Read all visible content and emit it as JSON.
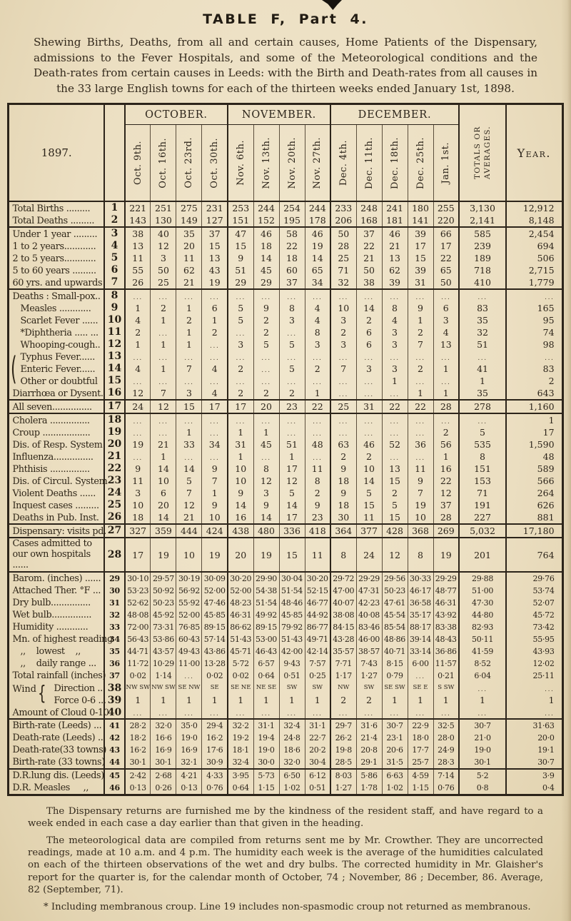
{
  "page": {
    "title": "TABLE F, Part 4.",
    "subtitle": "Shewing Births, Deaths, from all and certain causes, Home Patients of the Dispensary, admissions to the Fever Hospitals, and some of the Meteorological conditions and the Death-rates from certain causes in Leeds: with the Birth and Death-rates from all causes in the 33 large English towns for each of the thirteen weeks ended January 1st, 1898."
  },
  "glyphs": {
    "brace3": "(",
    "brace2": "{"
  },
  "table": {
    "year_label": "1897.",
    "month_groups": [
      {
        "label": "OCTOBER.",
        "cols": 4
      },
      {
        "label": "NOVEMBER.",
        "cols": 4
      },
      {
        "label": "DECEMBER.",
        "cols": 5
      }
    ],
    "week_headers": [
      "Oct. 9th.",
      "Oct. 16th.",
      "Oct. 23rd.",
      "Oct. 30th.",
      "Nov. 6th.",
      "Nov. 13th.",
      "Nov. 20th.",
      "Nov. 27th.",
      "Dec. 4th.",
      "Dec. 11th.",
      "Dec. 18th.",
      "Dec. 25th.",
      "Jan. 1st."
    ],
    "totals_header": "TOTALS OR AVERAGES.",
    "year_header": "Year.",
    "rows": [
      {
        "label": "Total Births .........",
        "num": "1",
        "cells": [
          "221",
          "251",
          "275",
          "231",
          "253",
          "244",
          "254",
          "244",
          "233",
          "248",
          "241",
          "180",
          "255"
        ],
        "tot": "3,130",
        "yr": "12,912",
        "gs": true
      },
      {
        "label": "Total Deaths .........",
        "num": "2",
        "cells": [
          "143",
          "130",
          "149",
          "127",
          "151",
          "152",
          "195",
          "178",
          "206",
          "168",
          "181",
          "141",
          "220"
        ],
        "tot": "2,141",
        "yr": "8,148"
      },
      {
        "label": "Under 1 year .........",
        "num": "3",
        "cells": [
          "38",
          "40",
          "35",
          "37",
          "47",
          "46",
          "58",
          "46",
          "50",
          "37",
          "46",
          "39",
          "66"
        ],
        "tot": "585",
        "yr": "2,454",
        "gs": true
      },
      {
        "label": "1 to 2 years............",
        "num": "4",
        "cells": [
          "13",
          "12",
          "20",
          "15",
          "15",
          "18",
          "22",
          "19",
          "28",
          "22",
          "21",
          "17",
          "17"
        ],
        "tot": "239",
        "yr": "694"
      },
      {
        "label": "2 to 5 years............",
        "num": "5",
        "cells": [
          "11",
          "3",
          "11",
          "13",
          "9",
          "14",
          "18",
          "14",
          "25",
          "21",
          "13",
          "15",
          "22"
        ],
        "tot": "189",
        "yr": "506"
      },
      {
        "label": "5 to 60 years .........",
        "num": "6",
        "cells": [
          "55",
          "50",
          "62",
          "43",
          "51",
          "45",
          "60",
          "65",
          "71",
          "50",
          "62",
          "39",
          "65"
        ],
        "tot": "718",
        "yr": "2,715"
      },
      {
        "label": "60 yrs. and upwards",
        "num": "7",
        "cells": [
          "26",
          "25",
          "21",
          "19",
          "29",
          "29",
          "37",
          "34",
          "32",
          "38",
          "39",
          "31",
          "50"
        ],
        "tot": "410",
        "yr": "1,779"
      },
      {
        "label": "Deaths : Small-pox..",
        "num": "8",
        "cells": [
          "...",
          "...",
          "...",
          "...",
          "...",
          "...",
          "...",
          "...",
          "...",
          "...",
          "...",
          "...",
          "..."
        ],
        "tot": "...",
        "yr": "...",
        "gs": true
      },
      {
        "label": "Measles ............",
        "num": "9",
        "indent": true,
        "cells": [
          "1",
          "2",
          "1",
          "6",
          "5",
          "9",
          "8",
          "4",
          "10",
          "14",
          "8",
          "9",
          "6"
        ],
        "tot": "83",
        "yr": "165"
      },
      {
        "label": "Scarlet Fever ......",
        "num": "10",
        "indent": true,
        "cells": [
          "4",
          "1",
          "2",
          "1",
          "5",
          "2",
          "3",
          "4",
          "3",
          "2",
          "4",
          "1",
          "3"
        ],
        "tot": "35",
        "yr": "95"
      },
      {
        "label": "*Diphtheria ..... ...",
        "num": "11",
        "indent": true,
        "cells": [
          "2",
          "...",
          "1",
          "2",
          "...",
          "2",
          "...",
          "8",
          "2",
          "6",
          "3",
          "2",
          "4"
        ],
        "tot": "32",
        "yr": "74"
      },
      {
        "label": "Whooping-cough..",
        "num": "12",
        "indent": true,
        "cells": [
          "1",
          "1",
          "1",
          "...",
          "3",
          "5",
          "5",
          "3",
          "3",
          "6",
          "3",
          "7",
          "13"
        ],
        "tot": "51",
        "yr": "98"
      },
      {
        "label": "Typhus Fever......",
        "num": "13",
        "indent": true,
        "brace3": true,
        "cells": [
          "...",
          "...",
          "...",
          "...",
          "...",
          "...",
          "...",
          "...",
          "...",
          "...",
          "...",
          "...",
          "..."
        ],
        "tot": "...",
        "yr": "..."
      },
      {
        "label": "Enteric Fever......",
        "num": "14",
        "indent": true,
        "cells": [
          "4",
          "1",
          "7",
          "4",
          "2",
          "...",
          "5",
          "2",
          "7",
          "3",
          "3",
          "2",
          "1"
        ],
        "tot": "41",
        "yr": "83"
      },
      {
        "label": "Other or doubtful",
        "num": "15",
        "indent": true,
        "cells": [
          "...",
          "...",
          "...",
          "...",
          "...",
          "...",
          "...",
          "...",
          "...",
          "...",
          "1",
          "...",
          "..."
        ],
        "tot": "1",
        "yr": "2"
      },
      {
        "label": "Diarrhœa or Dysent.",
        "num": "16",
        "cells": [
          "12",
          "7",
          "3",
          "4",
          "2",
          "2",
          "2",
          "1",
          "...",
          "...",
          "...",
          "1",
          "1"
        ],
        "tot": "35",
        "yr": "643"
      },
      {
        "label": "All seven...............",
        "num": "17",
        "cells": [
          "24",
          "12",
          "15",
          "17",
          "17",
          "20",
          "23",
          "22",
          "25",
          "31",
          "22",
          "22",
          "28"
        ],
        "tot": "278",
        "yr": "1,160",
        "gs": true
      },
      {
        "label": "Cholera ...............",
        "num": "18",
        "cells": [
          "...",
          "...",
          "...",
          "...",
          "...",
          "...",
          "...",
          "...",
          "...",
          "...",
          "...",
          "...",
          "..."
        ],
        "tot": "...",
        "yr": "1",
        "gs": true
      },
      {
        "label": "Croup ..................",
        "num": "19",
        "cells": [
          "...",
          "...",
          "1",
          "...",
          "1",
          "1",
          "...",
          "...",
          "...",
          "...",
          "...",
          "...",
          "2"
        ],
        "tot": "5",
        "yr": "17"
      },
      {
        "label": "Dis. of Resp. System",
        "num": "20",
        "cells": [
          "19",
          "21",
          "33",
          "34",
          "31",
          "45",
          "51",
          "48",
          "63",
          "46",
          "52",
          "36",
          "56"
        ],
        "tot": "535",
        "yr": "1,590"
      },
      {
        "label": "Influenza...............",
        "num": "21",
        "cells": [
          "...",
          "1",
          "...",
          "...",
          "1",
          "...",
          "1",
          "...",
          "2",
          "2",
          "...",
          "...",
          "1"
        ],
        "tot": "8",
        "yr": "48"
      },
      {
        "label": "Phthisis ...............",
        "num": "22",
        "cells": [
          "9",
          "14",
          "14",
          "9",
          "10",
          "8",
          "17",
          "11",
          "9",
          "10",
          "13",
          "11",
          "16"
        ],
        "tot": "151",
        "yr": "589"
      },
      {
        "label": "Dis. of Circul. System",
        "num": "23",
        "cells": [
          "11",
          "10",
          "5",
          "7",
          "10",
          "12",
          "12",
          "8",
          "18",
          "14",
          "15",
          "9",
          "22"
        ],
        "tot": "153",
        "yr": "566"
      },
      {
        "label": "Violent Deaths ......",
        "num": "24",
        "cells": [
          "3",
          "6",
          "7",
          "1",
          "9",
          "3",
          "5",
          "2",
          "9",
          "5",
          "2",
          "7",
          "12"
        ],
        "tot": "71",
        "yr": "264"
      },
      {
        "label": "Inquest cases .........",
        "num": "25",
        "cells": [
          "10",
          "20",
          "12",
          "9",
          "14",
          "9",
          "14",
          "9",
          "18",
          "15",
          "5",
          "19",
          "37"
        ],
        "tot": "191",
        "yr": "626"
      },
      {
        "label": "Deaths in Pub. Inst.",
        "num": "26",
        "cells": [
          "18",
          "14",
          "21",
          "10",
          "16",
          "14",
          "17",
          "23",
          "30",
          "11",
          "15",
          "10",
          "28"
        ],
        "tot": "227",
        "yr": "881"
      },
      {
        "label": "Dispensary: visits pd.",
        "num": "27",
        "cells": [
          "327",
          "359",
          "444",
          "424",
          "438",
          "480",
          "336",
          "418",
          "364",
          "377",
          "428",
          "368",
          "269"
        ],
        "tot": "5,032",
        "yr": "17,180",
        "gs": true
      },
      {
        "label": "Cases admitted to our own hospitals ......",
        "num": "28",
        "wrap": true,
        "cells": [
          "17",
          "19",
          "10",
          "19",
          "20",
          "19",
          "15",
          "11",
          "8",
          "24",
          "12",
          "8",
          "19"
        ],
        "tot": "201",
        "yr": "764",
        "gs": true
      },
      {
        "label": "Barom. (inches) ......",
        "num": "29",
        "small": true,
        "cells": [
          "30·10",
          "29·57",
          "30·19",
          "30·09",
          "30·20",
          "29·90",
          "30·04",
          "30·20",
          "29·72",
          "29·29",
          "29·56",
          "30·33",
          "29·29"
        ],
        "tot": "29·88",
        "yr": "29·76",
        "gs": true
      },
      {
        "label": "Attached Ther. °F ...",
        "num": "30",
        "small": true,
        "cells": [
          "53·23",
          "50·92",
          "56·92",
          "52·00",
          "52·00",
          "54·38",
          "51·54",
          "52·15",
          "47·00",
          "47·31",
          "50·23",
          "46·17",
          "48·77"
        ],
        "tot": "51·00",
        "yr": "53·74"
      },
      {
        "label": "Dry bulb...............",
        "num": "31",
        "small": true,
        "cells": [
          "52·62",
          "50·23",
          "55·92",
          "47·46",
          "48·23",
          "51·54",
          "48·46",
          "46·77",
          "40·07",
          "42·23",
          "47·61",
          "36·58",
          "46·31"
        ],
        "tot": "47·30",
        "yr": "52·07"
      },
      {
        "label": "Wet bulb...............",
        "num": "32",
        "small": true,
        "cells": [
          "48·08",
          "45·92",
          "52·00",
          "45·85",
          "46·31",
          "49·92",
          "45·85",
          "44·92",
          "38·08",
          "40·08",
          "45·54",
          "35·17",
          "43·92"
        ],
        "tot": "44·80",
        "yr": "45·72"
      },
      {
        "label": "Humidity ............",
        "num": "33",
        "small": true,
        "cells": [
          "72·00",
          "73·31",
          "76·85",
          "89·15",
          "86·62",
          "89·15",
          "79·92",
          "86·77",
          "84·15",
          "83·46",
          "85·54",
          "88·17",
          "83·38"
        ],
        "tot": "82·93",
        "yr": "73·42"
      },
      {
        "label": "Mn. of highest reading",
        "num": "34",
        "small": true,
        "cells": [
          "56·43",
          "53·86",
          "60·43",
          "57·14",
          "51·43",
          "53·00",
          "51·43",
          "49·71",
          "43·28",
          "46·00",
          "48·86",
          "39·14",
          "48·43"
        ],
        "tot": "50·11",
        "yr": "55·95"
      },
      {
        "label": ",,    lowest    ,,",
        "num": "35",
        "indent": true,
        "small": true,
        "cells": [
          "44·71",
          "43·57",
          "49·43",
          "43·86",
          "45·71",
          "46·43",
          "42·00",
          "42·14",
          "35·57",
          "38·57",
          "40·71",
          "33·14",
          "36·86"
        ],
        "tot": "41·59",
        "yr": "43·93"
      },
      {
        "label": ",,    daily range ...",
        "num": "36",
        "indent": true,
        "small": true,
        "cells": [
          "11·72",
          "10·29",
          "11·00",
          "13·28",
          "5·72",
          "6·57",
          "9·43",
          "7·57",
          "7·71",
          "7·43",
          "8·15",
          "6·00",
          "11·57"
        ],
        "tot": "8·52",
        "yr": "12·02"
      },
      {
        "label": "Total rainfall (inches)",
        "num": "37",
        "small": true,
        "cells": [
          "0·02",
          "1·14",
          "...",
          "0·02",
          "0·02",
          "0·64",
          "0·51",
          "0·25",
          "1·17",
          "1·27",
          "0·79",
          "...",
          "0·21"
        ],
        "tot": "6·04",
        "yr": "25·11"
      },
      {
        "label": "Direction ...",
        "num": "38",
        "side": "Wind",
        "brace2": true,
        "windpad": true,
        "wind": true,
        "cells": [
          "NW SW",
          "NW SW",
          "SE NW",
          "SE",
          "SE NE",
          "NE SE",
          "SW",
          "SW",
          "NW",
          "SW",
          "SE SW",
          "SE E",
          "S SW"
        ],
        "tot": "...",
        "yr": "..."
      },
      {
        "label": "Force 0-6 ...",
        "num": "39",
        "windpad": true,
        "cells": [
          "1",
          "1",
          "1",
          "1",
          "1",
          "1",
          "1",
          "1",
          "2",
          "2",
          "1",
          "1",
          "1"
        ],
        "tot": "1",
        "yr": "1"
      },
      {
        "label": "Amount of Cloud 0-10",
        "num": "40",
        "cells": [
          "...",
          "...",
          "...",
          "...",
          "...",
          "...",
          "...",
          "...",
          "...",
          "...",
          "...",
          "...",
          "..."
        ],
        "tot": "...",
        "yr": "..."
      },
      {
        "label": "Birth-rate (Leeds) ...",
        "num": "41",
        "small": true,
        "cells": [
          "28·2",
          "32·0",
          "35·0",
          "29·4",
          "32·2",
          "31·1",
          "32·4",
          "31·1",
          "29·7",
          "31·6",
          "30·7",
          "22·9",
          "32·5"
        ],
        "tot": "30·7",
        "yr": "31·63",
        "gs": true
      },
      {
        "label": "Death-rate (Leeds) ..",
        "num": "42",
        "small": true,
        "cells": [
          "18·2",
          "16·6",
          "19·0",
          "16·2",
          "19·2",
          "19·4",
          "24·8",
          "22·7",
          "26·2",
          "21·4",
          "23·1",
          "18·0",
          "28·0"
        ],
        "tot": "21·0",
        "yr": "20·0"
      },
      {
        "label": "Death-rate(33 towns)",
        "num": "43",
        "small": true,
        "cells": [
          "16·2",
          "16·9",
          "16·9",
          "17·6",
          "18·1",
          "19·0",
          "18·6",
          "20·2",
          "19·8",
          "20·8",
          "20·6",
          "17·7",
          "24·9"
        ],
        "tot": "19·0",
        "yr": "19·1"
      },
      {
        "label": "Birth-rate (33 towns)",
        "num": "44",
        "small": true,
        "cells": [
          "30·1",
          "30·1",
          "32·1",
          "30·9",
          "32·4",
          "30·0",
          "32·0",
          "30·4",
          "28·5",
          "29·1",
          "31·5",
          "25·7",
          "28·3"
        ],
        "tot": "30·1",
        "yr": "30·7"
      },
      {
        "label": "D.R.lung dis. (Leeds)",
        "num": "45",
        "small": true,
        "cells": [
          "2·42",
          "2·68",
          "4·21",
          "4·33",
          "3·95",
          "5·73",
          "6·50",
          "6·12",
          "8·03",
          "5·86",
          "6·63",
          "4·59",
          "7·14"
        ],
        "tot": "5·2",
        "yr": "3·9",
        "gs": true
      },
      {
        "label": "D.R. Measles     ,,",
        "num": "46",
        "small": true,
        "cells": [
          "0·13",
          "0·26",
          "0·13",
          "0·76",
          "0·64",
          "1·15",
          "1·02",
          "0·51",
          "1·27",
          "1·78",
          "1·02",
          "1·15",
          "0·76"
        ],
        "tot": "0·8",
        "yr": "0·4"
      }
    ]
  },
  "footnotes": [
    "The Dispensary returns are furnished me by the kindness of the resident staff, and have regard to a week ended in each case a day earlier than that given in the heading.",
    "The meteorological data are compiled from returns sent me by Mr. Crowther.  They are uncorrected readings, made at 10 a.m. and 4 p.m.  The humidity each week is the average of the humidities calculated on each of the thirteen observations of the wet and dry bulbs.  The corrected humidity in Mr. Glaisher's report for the quarter is, for the calendar month of October, 74 ; November, 86 ; December, 86.  Average, 82 (September, 71).",
    "* Including membranous croup.  Line 19 includes non-spasmodic croup not returned as membranous."
  ]
}
